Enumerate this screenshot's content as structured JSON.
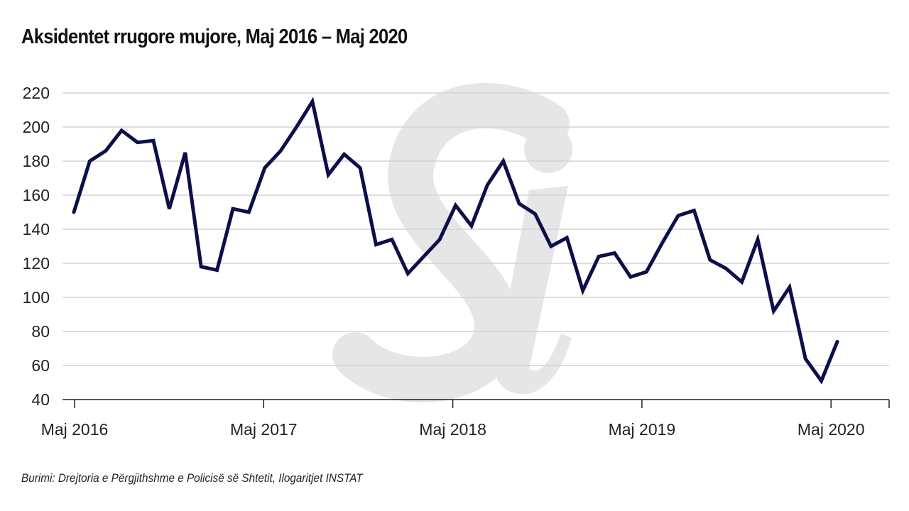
{
  "chart_data": {
    "type": "line",
    "title": "Aksidentet rrugore mujore, Maj 2016 – Maj 2020",
    "xlabel": "",
    "ylabel": "",
    "ylim": [
      40,
      220
    ],
    "yticks": [
      40,
      60,
      80,
      100,
      120,
      140,
      160,
      180,
      200,
      220
    ],
    "xtick_labels": [
      "Maj 2016",
      "Maj 2017",
      "Maj 2018",
      "Maj 2019",
      "Maj 2020"
    ],
    "grid": true,
    "x_start": "Maj 2016",
    "x_end": "Maj 2020",
    "series": [
      {
        "name": "Aksidentet rrugore",
        "color": "#0d0f4a",
        "values": [
          150,
          180,
          186,
          198,
          191,
          192,
          152,
          185,
          118,
          116,
          152,
          150,
          176,
          186,
          200,
          215,
          172,
          184,
          176,
          131,
          134,
          114,
          124,
          134,
          154,
          142,
          166,
          180,
          155,
          149,
          130,
          135,
          104,
          124,
          126,
          112,
          115,
          132,
          148,
          151,
          122,
          117,
          109,
          134,
          92,
          106,
          64,
          51,
          74
        ]
      }
    ],
    "source": "Burimi: Drejtoria e Përgjithshme e Policisë së Shtetit, Ilogaritjet INSTAT",
    "watermark": "Si"
  }
}
